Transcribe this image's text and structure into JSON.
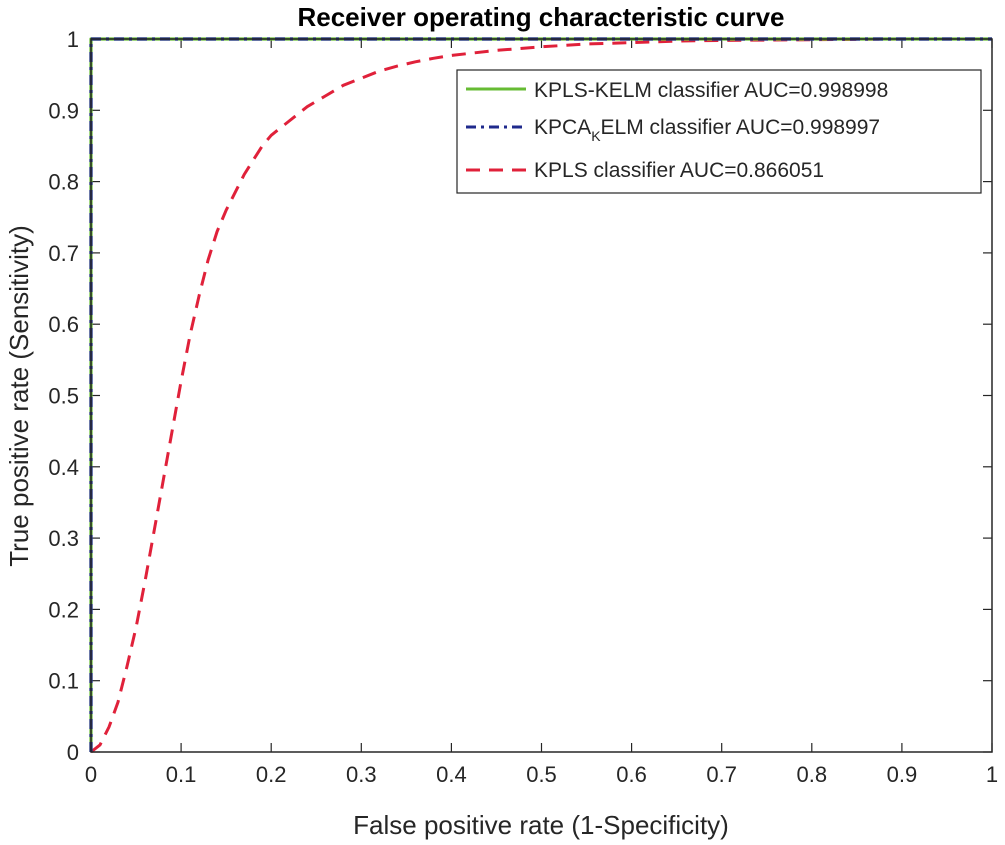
{
  "chart_data": {
    "type": "line",
    "title": "Receiver operating characteristic curve",
    "xlabel": "False positive rate (1-Specificity)",
    "ylabel": "True positive rate (Sensitivity)",
    "xlim": [
      0,
      1
    ],
    "ylim": [
      0,
      1
    ],
    "xticks": [
      "0",
      "0.1",
      "0.2",
      "0.3",
      "0.4",
      "0.5",
      "0.6",
      "0.7",
      "0.8",
      "0.9",
      "1"
    ],
    "yticks": [
      "0",
      "0.1",
      "0.2",
      "0.3",
      "0.4",
      "0.5",
      "0.6",
      "0.7",
      "0.8",
      "0.9",
      "1"
    ],
    "grid": false,
    "legend_position": "top-right",
    "series": [
      {
        "name": "KPLS-KELM classifier AUC=0.998998",
        "color": "#66bb33",
        "style": "solid",
        "x": [
          0,
          0,
          1
        ],
        "y": [
          0,
          1,
          1
        ]
      },
      {
        "name": "KPCA",
        "name_subscript": "K",
        "name_rest": "ELM classifier AUC=0.998997",
        "color": "#1f2a8c",
        "style": "dash-dot",
        "x": [
          0,
          0,
          1
        ],
        "y": [
          0,
          1,
          1
        ]
      },
      {
        "name": "KPLS classifier AUC=0.866051",
        "color": "#e0213a",
        "style": "dashed",
        "x": [
          0,
          0.01,
          0.02,
          0.03,
          0.04,
          0.05,
          0.06,
          0.07,
          0.08,
          0.09,
          0.1,
          0.11,
          0.12,
          0.13,
          0.14,
          0.15,
          0.16,
          0.17,
          0.18,
          0.19,
          0.2,
          0.22,
          0.24,
          0.26,
          0.28,
          0.3,
          0.32,
          0.34,
          0.36,
          0.38,
          0.4,
          0.45,
          0.5,
          0.55,
          0.6,
          0.65,
          0.7,
          0.8,
          0.9,
          1.0
        ],
        "y": [
          0,
          0.01,
          0.035,
          0.07,
          0.12,
          0.175,
          0.24,
          0.31,
          0.38,
          0.45,
          0.52,
          0.585,
          0.64,
          0.69,
          0.73,
          0.76,
          0.785,
          0.81,
          0.83,
          0.85,
          0.865,
          0.885,
          0.905,
          0.92,
          0.935,
          0.945,
          0.955,
          0.962,
          0.968,
          0.973,
          0.977,
          0.984,
          0.989,
          0.993,
          0.995,
          0.997,
          0.998,
          0.999,
          1.0,
          1.0
        ]
      }
    ]
  }
}
